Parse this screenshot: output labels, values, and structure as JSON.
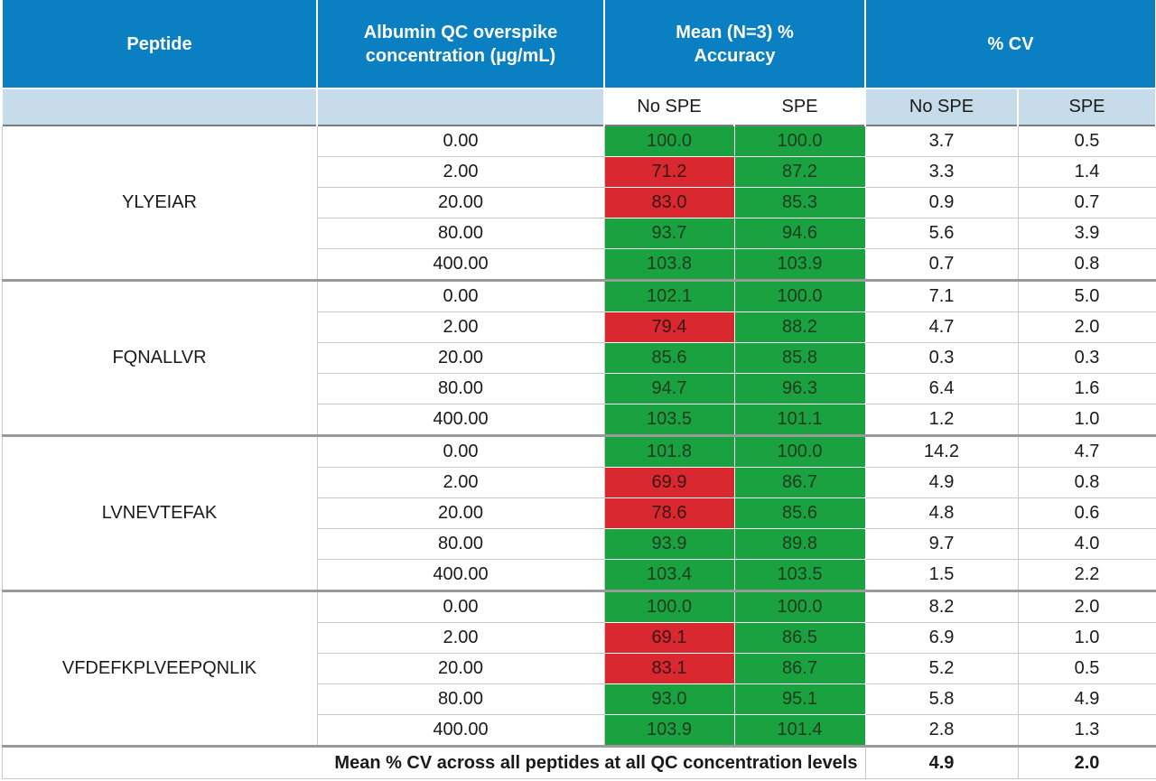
{
  "table": {
    "headers": {
      "peptide": "Peptide",
      "concentration": "Albumin QC overspike concentration (µg/mL)",
      "accuracy": "Mean (N=3) % Accuracy",
      "cv": "% CV"
    },
    "subheaders": {
      "no_spe": "No SPE",
      "spe": "SPE"
    },
    "groups": [
      {
        "peptide": "YLYEIAR",
        "rows": [
          {
            "conc": "0.00",
            "acc_no_spe": "100.0",
            "acc_spe": "100.0",
            "cv_no_spe": "3.7",
            "cv_spe": "0.5"
          },
          {
            "conc": "2.00",
            "acc_no_spe": "71.2",
            "acc_spe": "87.2",
            "cv_no_spe": "3.3",
            "cv_spe": "1.4"
          },
          {
            "conc": "20.00",
            "acc_no_spe": "83.0",
            "acc_spe": "85.3",
            "cv_no_spe": "0.9",
            "cv_spe": "0.7"
          },
          {
            "conc": "80.00",
            "acc_no_spe": "93.7",
            "acc_spe": "94.6",
            "cv_no_spe": "5.6",
            "cv_spe": "3.9"
          },
          {
            "conc": "400.00",
            "acc_no_spe": "103.8",
            "acc_spe": "103.9",
            "cv_no_spe": "0.7",
            "cv_spe": "0.8"
          }
        ]
      },
      {
        "peptide": "FQNALLVR",
        "rows": [
          {
            "conc": "0.00",
            "acc_no_spe": "102.1",
            "acc_spe": "100.0",
            "cv_no_spe": "7.1",
            "cv_spe": "5.0"
          },
          {
            "conc": "2.00",
            "acc_no_spe": "79.4",
            "acc_spe": "88.2",
            "cv_no_spe": "4.7",
            "cv_spe": "2.0"
          },
          {
            "conc": "20.00",
            "acc_no_spe": "85.6",
            "acc_spe": "85.8",
            "cv_no_spe": "0.3",
            "cv_spe": "0.3"
          },
          {
            "conc": "80.00",
            "acc_no_spe": "94.7",
            "acc_spe": "96.3",
            "cv_no_spe": "6.4",
            "cv_spe": "1.6"
          },
          {
            "conc": "400.00",
            "acc_no_spe": "103.5",
            "acc_spe": "101.1",
            "cv_no_spe": "1.2",
            "cv_spe": "1.0"
          }
        ]
      },
      {
        "peptide": "LVNEVTEFAK",
        "rows": [
          {
            "conc": "0.00",
            "acc_no_spe": "101.8",
            "acc_spe": "100.0",
            "cv_no_spe": "14.2",
            "cv_spe": "4.7"
          },
          {
            "conc": "2.00",
            "acc_no_spe": "69.9",
            "acc_spe": "86.7",
            "cv_no_spe": "4.9",
            "cv_spe": "0.8"
          },
          {
            "conc": "20.00",
            "acc_no_spe": "78.6",
            "acc_spe": "85.6",
            "cv_no_spe": "4.8",
            "cv_spe": "0.6"
          },
          {
            "conc": "80.00",
            "acc_no_spe": "93.9",
            "acc_spe": "89.8",
            "cv_no_spe": "9.7",
            "cv_spe": "4.0"
          },
          {
            "conc": "400.00",
            "acc_no_spe": "103.4",
            "acc_spe": "103.5",
            "cv_no_spe": "1.5",
            "cv_spe": "2.2"
          }
        ]
      },
      {
        "peptide": "VFDEFKPLVEEPQNLIK",
        "rows": [
          {
            "conc": "0.00",
            "acc_no_spe": "100.0",
            "acc_spe": "100.0",
            "cv_no_spe": "8.2",
            "cv_spe": "2.0"
          },
          {
            "conc": "2.00",
            "acc_no_spe": "69.1",
            "acc_spe": "86.5",
            "cv_no_spe": "6.9",
            "cv_spe": "1.0"
          },
          {
            "conc": "20.00",
            "acc_no_spe": "83.1",
            "acc_spe": "86.7",
            "cv_no_spe": "5.2",
            "cv_spe": "0.5"
          },
          {
            "conc": "80.00",
            "acc_no_spe": "93.0",
            "acc_spe": "95.1",
            "cv_no_spe": "5.8",
            "cv_spe": "4.9"
          },
          {
            "conc": "400.00",
            "acc_no_spe": "103.9",
            "acc_spe": "101.4",
            "cv_no_spe": "2.8",
            "cv_spe": "1.3"
          }
        ]
      }
    ],
    "footer": {
      "label": "Mean % CV across all peptides at all QC concentration levels",
      "cv_no_spe": "4.9",
      "cv_spe": "2.0"
    },
    "colors": {
      "header_blue": "#0a7fc2",
      "subheader": "#c7dcea",
      "pass_green": "#19a23f",
      "fail_red": "#d9282f"
    },
    "acceptance_threshold": 85
  }
}
